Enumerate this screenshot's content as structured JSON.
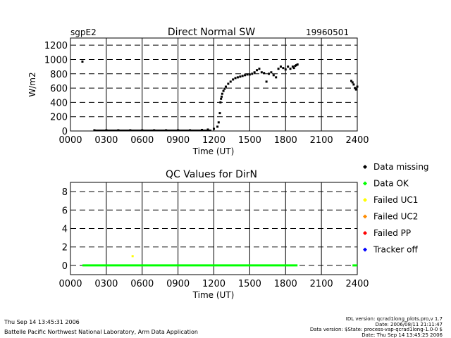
{
  "header": {
    "site": "sgpE2",
    "title": "Direct Normal SW",
    "date": "19960501"
  },
  "chart_data": [
    {
      "type": "scatter",
      "title": "Direct Normal SW",
      "xlabel": "Time (UT)",
      "ylabel": "W/m2",
      "xlim": [
        0,
        2400
      ],
      "ylim": [
        0,
        1300
      ],
      "x_ticks": [
        "0000",
        "0300",
        "0600",
        "0900",
        "1200",
        "1500",
        "1800",
        "2100",
        "2400"
      ],
      "y_ticks": [
        "0",
        "200",
        "400",
        "600",
        "800",
        "1000",
        "1200"
      ],
      "grid": "dashed",
      "series": [
        {
          "color": "#000000",
          "x": [
            100,
            200,
            300,
            400,
            500,
            600,
            700,
            800,
            900,
            1000,
            1100,
            1150,
            1200,
            1230,
            1240,
            1250,
            1255,
            1260,
            1265,
            1270,
            1280,
            1290,
            1300,
            1320,
            1340,
            1360,
            1380,
            1400,
            1420,
            1440,
            1460,
            1480,
            1500,
            1520,
            1540,
            1560,
            1580,
            1600,
            1620,
            1640,
            1660,
            1680,
            1700,
            1720,
            1740,
            1760,
            1780,
            1800,
            1820,
            1840,
            1860,
            1870,
            1880,
            1890,
            1900,
            2350,
            2360,
            2370,
            2380,
            2390,
            2400
          ],
          "y": [
            970,
            10,
            10,
            10,
            10,
            10,
            10,
            10,
            10,
            10,
            15,
            20,
            30,
            60,
            120,
            250,
            400,
            450,
            480,
            520,
            560,
            590,
            620,
            660,
            690,
            720,
            740,
            750,
            760,
            770,
            780,
            790,
            790,
            800,
            820,
            850,
            870,
            820,
            810,
            690,
            800,
            820,
            780,
            750,
            870,
            900,
            880,
            860,
            900,
            870,
            900,
            880,
            910,
            920,
            930,
            700,
            680,
            650,
            600,
            580,
            620
          ]
        }
      ]
    },
    {
      "type": "scatter",
      "title": "QC Values for DirN",
      "xlabel": "Time (UT)",
      "ylabel": "",
      "xlim": [
        0,
        2400
      ],
      "ylim": [
        -1,
        9
      ],
      "x_ticks": [
        "0000",
        "0300",
        "0600",
        "0900",
        "1200",
        "1500",
        "1800",
        "2100",
        "2400"
      ],
      "y_ticks": [
        "0",
        "2",
        "4",
        "6",
        "8"
      ],
      "grid": "dashed",
      "series": [
        {
          "color": "#00ff00",
          "segments": [
            [
              100,
              1900
            ],
            [
              2360,
              2400
            ]
          ],
          "y": 0
        },
        {
          "color": "#ffff00",
          "x": [
            520
          ],
          "y": [
            1
          ]
        }
      ]
    }
  ],
  "legend": [
    {
      "label": "Data missing",
      "color": "#000000"
    },
    {
      "label": "Data OK",
      "color": "#00ff00"
    },
    {
      "label": "Failed UC1",
      "color": "#ffff00"
    },
    {
      "label": "Failed UC2",
      "color": "#ff8c00"
    },
    {
      "label": "Failed PP",
      "color": "#ff0000"
    },
    {
      "label": "Tracker off",
      "color": "#0000ff"
    }
  ],
  "footer": {
    "timestamp": "Thu Sep 14 13:45:31 2006",
    "lab": "Battelle Pacific Northwest National Laboratory, Arm Data Application",
    "idl_version": "IDL version: qcrad1long_plots.pro,v 1.7",
    "date_line": "Date: 2006/08/11 21:11:47",
    "data_version": "Data version: $State: process-vap-qcrad1long-1.0-0 $",
    "data_date": "Date: Thu Sep 14 13:45:25 2006"
  }
}
